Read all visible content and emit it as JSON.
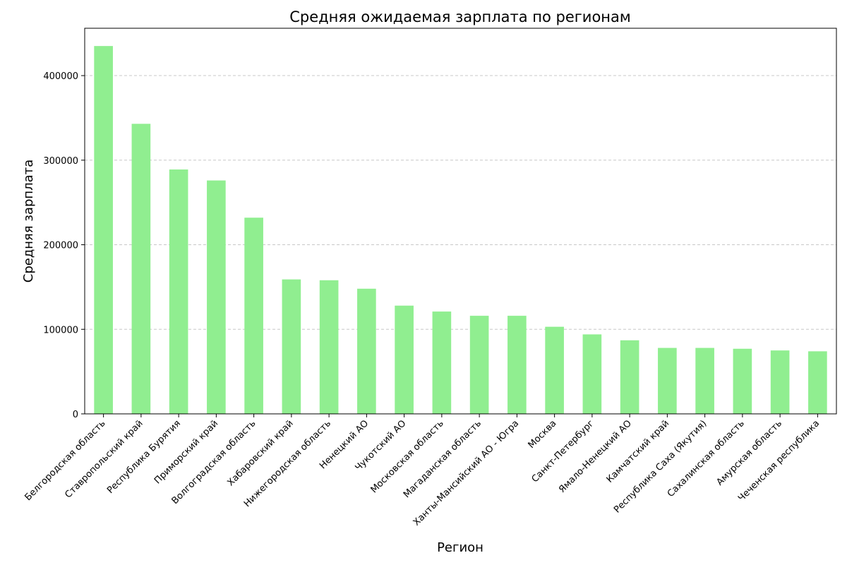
{
  "chart_data": {
    "type": "bar",
    "title": "Средняя ожидаемая зарплата по регионам",
    "xlabel": "Регион",
    "ylabel": "Средняя зарплата",
    "categories": [
      "Белгородская область",
      "Ставропольский край",
      "Республика Бурятия",
      "Приморский край",
      "Волгоградская область",
      "Хабаровский край",
      "Нижегородская область",
      "Ненецкий АО",
      "Чукотский АО",
      "Московская область",
      "Магаданская область",
      "Ханты-Мансийский АО - Югра",
      "Москва",
      "Санкт-Петербург",
      "Ямало-Ненецкий АО",
      "Камчатский край",
      "Республика Саха (Якутия)",
      "Сахалинская область",
      "Амурская область",
      "Чеченская республика"
    ],
    "values": [
      435000,
      343000,
      289000,
      276000,
      232000,
      159000,
      158000,
      148000,
      128000,
      121000,
      116000,
      116000,
      103000,
      94000,
      87000,
      78000,
      78000,
      77000,
      75000,
      74000
    ],
    "ylim": [
      0,
      456000
    ],
    "yticks": [
      0,
      100000,
      200000,
      300000,
      400000
    ],
    "ytick_labels": [
      "0",
      "100000",
      "200000",
      "300000",
      "400000"
    ],
    "grid": "y-dashed",
    "bar_color": "#90ee90",
    "grid_color": "#c8c8c8"
  }
}
